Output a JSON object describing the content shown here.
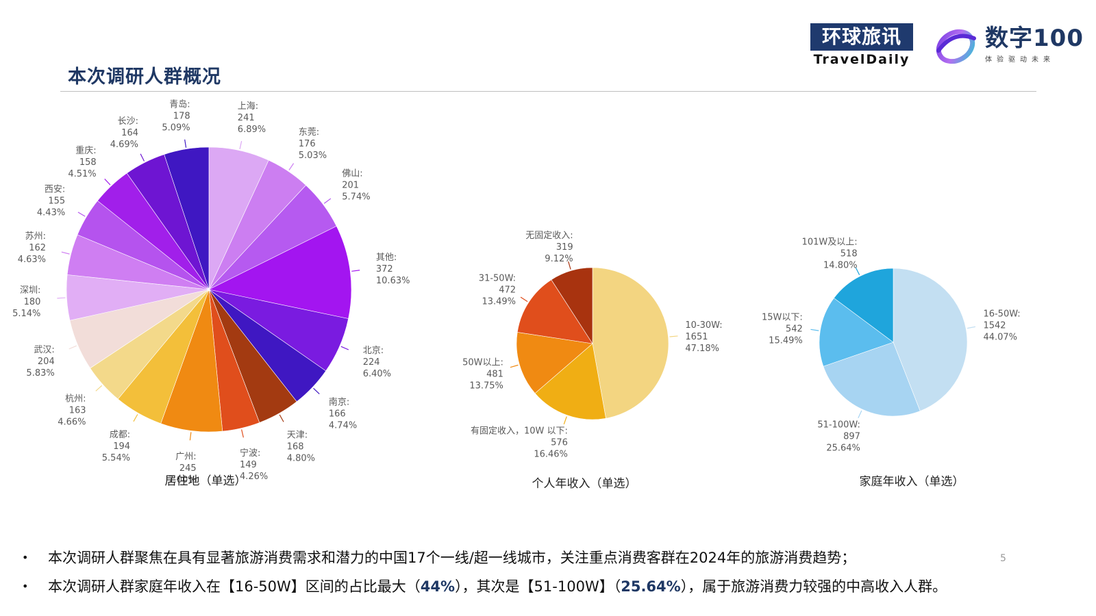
{
  "header": {
    "title": "本次调研人群概况",
    "logo_traveldaily_cn": "环球旅讯",
    "logo_traveldaily_en": "TravelDaily",
    "logo_shuzi_main": "数字100",
    "logo_shuzi_sub": "体验驱动未来"
  },
  "chart_data": [
    {
      "type": "pie",
      "caption": "居住地（单选）",
      "slices": [
        {
          "name": "上海",
          "value": 241,
          "pct": "6.89%",
          "color": "#dca8f4"
        },
        {
          "name": "东莞",
          "value": 176,
          "pct": "5.03%",
          "color": "#cc7ef1"
        },
        {
          "name": "佛山",
          "value": 201,
          "pct": "5.74%",
          "color": "#b65af0"
        },
        {
          "name": "其他",
          "value": 372,
          "pct": "10.63%",
          "color": "#a315f0"
        },
        {
          "name": "北京",
          "value": 224,
          "pct": "6.40%",
          "color": "#7a1be0"
        },
        {
          "name": "南京",
          "value": 166,
          "pct": "4.74%",
          "color": "#3f17c2"
        },
        {
          "name": "天津",
          "value": 168,
          "pct": "4.80%",
          "color": "#a33a11"
        },
        {
          "name": "宁波",
          "value": 149,
          "pct": "4.26%",
          "color": "#e04e1c"
        },
        {
          "name": "广州",
          "value": 245,
          "pct": "7.00%",
          "color": "#f08a12"
        },
        {
          "name": "成都",
          "value": 194,
          "pct": "5.54%",
          "color": "#f3bf3a"
        },
        {
          "name": "杭州",
          "value": 163,
          "pct": "4.66%",
          "color": "#f3d98a"
        },
        {
          "name": "武汉",
          "value": 204,
          "pct": "5.83%",
          "color": "#f2ddd9"
        },
        {
          "name": "深圳",
          "value": 180,
          "pct": "5.14%",
          "color": "#e1aef5"
        },
        {
          "name": "苏州",
          "value": 162,
          "pct": "4.63%",
          "color": "#cf7ef2"
        },
        {
          "name": "西安",
          "value": 155,
          "pct": "4.43%",
          "color": "#b553ee"
        },
        {
          "name": "重庆",
          "value": 158,
          "pct": "4.51%",
          "color": "#a11fea"
        },
        {
          "name": "长沙",
          "value": 164,
          "pct": "4.69%",
          "color": "#6e15d2"
        },
        {
          "name": "青岛",
          "value": 178,
          "pct": "5.09%",
          "color": "#3f17c2"
        }
      ]
    },
    {
      "type": "pie",
      "caption": "个人年收入（单选）",
      "slices": [
        {
          "name": "10-30W",
          "value": 1651,
          "pct": "47.18%",
          "color": "#f3d581"
        },
        {
          "name": "有固定收入，10W 以下",
          "value": 576,
          "pct": "16.46%",
          "color": "#f0ae14"
        },
        {
          "name": "50W以上",
          "value": 481,
          "pct": "13.75%",
          "color": "#f08a12"
        },
        {
          "name": "31-50W",
          "value": 472,
          "pct": "13.49%",
          "color": "#e04e1c"
        },
        {
          "name": "无固定收入",
          "value": 319,
          "pct": "9.12%",
          "color": "#a8330f"
        }
      ]
    },
    {
      "type": "pie",
      "caption": "家庭年收入（单选）",
      "slices": [
        {
          "name": "16-50W",
          "value": 1542,
          "pct": "44.07%",
          "color": "#c3dff2"
        },
        {
          "name": "51-100W",
          "value": 897,
          "pct": "25.64%",
          "color": "#a7d4f2"
        },
        {
          "name": "15W以下",
          "value": 542,
          "pct": "15.49%",
          "color": "#5bbdee"
        },
        {
          "name": "101W及以上",
          "value": 518,
          "pct": "14.80%",
          "color": "#1fa5dc"
        }
      ]
    }
  ],
  "bullets": [
    {
      "parts": [
        {
          "text": "本次调研人群聚焦在具有显著旅游消费需求和潜力的中国17个一线/超一线城市，关注重点消费客群在2024年的旅游消费趋势；",
          "hl": false
        }
      ]
    },
    {
      "parts": [
        {
          "text": "本次调研人群家庭年收入在【16-50W】区间的占比最大（",
          "hl": false
        },
        {
          "text": "44%",
          "hl": true
        },
        {
          "text": "），其次是【51-100W】（",
          "hl": false
        },
        {
          "text": "25.64%",
          "hl": true
        },
        {
          "text": "），属于旅游消费力较强的中高收入人群。",
          "hl": false
        }
      ]
    }
  ],
  "page_number": "5"
}
